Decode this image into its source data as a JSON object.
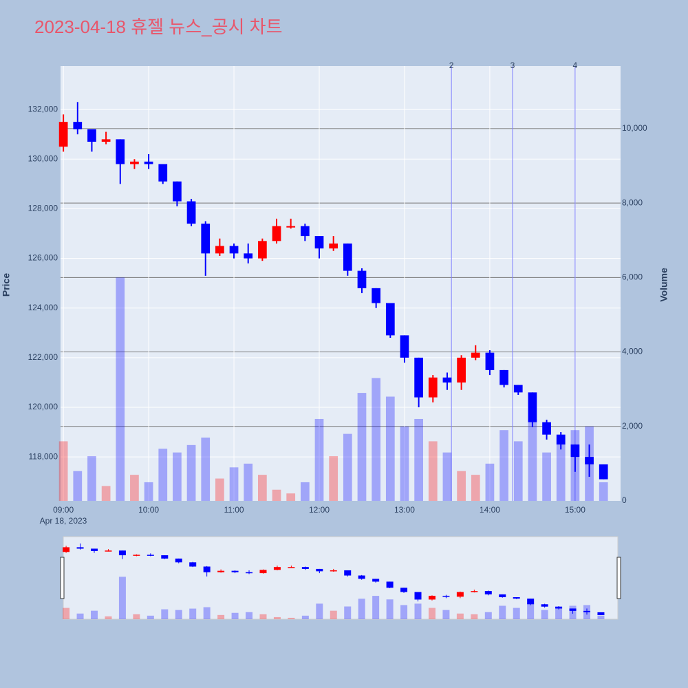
{
  "chart_data": {
    "type": "candlestick",
    "title": "2023-04-18 휴젤 뉴스_공시 차트",
    "y_title": "Price",
    "y2_title": "Volume",
    "x_date_label": "Apr 18, 2023",
    "x": [
      "09:00",
      "09:10",
      "09:20",
      "09:30",
      "09:40",
      "09:50",
      "10:00",
      "10:10",
      "10:20",
      "10:30",
      "10:40",
      "10:50",
      "11:00",
      "11:10",
      "11:20",
      "11:30",
      "11:40",
      "11:50",
      "12:00",
      "12:10",
      "12:20",
      "12:30",
      "12:40",
      "12:50",
      "13:00",
      "13:10",
      "13:20",
      "13:30",
      "13:40",
      "13:50",
      "14:00",
      "14:10",
      "14:20",
      "14:30",
      "14:40",
      "14:50",
      "15:00",
      "15:10",
      "15:20"
    ],
    "open": [
      130500,
      131500,
      131200,
      130700,
      130800,
      129800,
      129900,
      129800,
      129100,
      128300,
      127400,
      126200,
      126500,
      126200,
      126000,
      126700,
      127300,
      127300,
      126900,
      126400,
      126600,
      125500,
      124800,
      124200,
      122900,
      122000,
      120400,
      121200,
      121000,
      122000,
      122200,
      121500,
      120900,
      120600,
      119400,
      118900,
      118500,
      118000,
      117700
    ],
    "high": [
      131800,
      132300,
      131200,
      131100,
      130800,
      130000,
      130200,
      129800,
      129100,
      128400,
      127500,
      126800,
      126600,
      126600,
      126800,
      127600,
      127600,
      127400,
      126900,
      126900,
      126600,
      125600,
      124800,
      124200,
      122900,
      122000,
      121300,
      121400,
      122100,
      122500,
      122300,
      121500,
      120900,
      120600,
      119500,
      119000,
      118500,
      118500,
      117700
    ],
    "low": [
      130300,
      131000,
      130300,
      130600,
      129000,
      129600,
      129600,
      129000,
      128100,
      127300,
      125300,
      126100,
      126000,
      125800,
      125900,
      126600,
      127200,
      126700,
      126000,
      126300,
      125300,
      124600,
      124000,
      122800,
      121800,
      120000,
      120200,
      120700,
      120700,
      121900,
      121300,
      120800,
      120500,
      119200,
      118700,
      118300,
      117400,
      117200,
      117100
    ],
    "close": [
      131500,
      131200,
      130700,
      130800,
      129800,
      129900,
      129800,
      129100,
      128300,
      127400,
      126200,
      126500,
      126200,
      126000,
      126700,
      127300,
      127300,
      126900,
      126400,
      126600,
      125500,
      124800,
      124200,
      122900,
      122000,
      120400,
      121200,
      121000,
      122000,
      122200,
      121500,
      120900,
      120600,
      119400,
      118900,
      118500,
      118000,
      117700,
      117100
    ],
    "volume": [
      1600,
      800,
      1200,
      400,
      6000,
      700,
      500,
      1400,
      1300,
      1500,
      1700,
      600,
      900,
      1000,
      700,
      300,
      200,
      500,
      2200,
      1200,
      1800,
      2900,
      3300,
      2800,
      2000,
      2200,
      1600,
      1300,
      800,
      700,
      1000,
      1900,
      1600,
      2200,
      1300,
      1700,
      1900,
      2000,
      500
    ],
    "up_color": "#ff0000",
    "down_color": "#0000ff",
    "xlim": [
      "08:58",
      "15:32"
    ],
    "xticks": [
      "09:00",
      "10:00",
      "11:00",
      "12:00",
      "13:00",
      "14:00",
      "15:00"
    ],
    "ylim": [
      116230,
      133750
    ],
    "yticks": [
      {
        "value": 118000,
        "label": "118,000"
      },
      {
        "value": 120000,
        "label": "120,000"
      },
      {
        "value": 122000,
        "label": "122,000"
      },
      {
        "value": 124000,
        "label": "124,000"
      },
      {
        "value": 126000,
        "label": "126,000"
      },
      {
        "value": 128000,
        "label": "128,000"
      },
      {
        "value": 130000,
        "label": "130,000"
      },
      {
        "value": 132000,
        "label": "132,000"
      }
    ],
    "y2lim": [
      0,
      11680
    ],
    "y2ticks": [
      0,
      {
        "value": 2000,
        "label": "2,000"
      },
      {
        "value": 4000,
        "label": "4,000"
      },
      {
        "value": 6000,
        "label": "6,000"
      },
      {
        "value": 8000,
        "label": "8,000"
      },
      {
        "value": 10000,
        "label": "10,000"
      }
    ],
    "news": [
      {
        "x": "13:33",
        "label": "2"
      },
      {
        "x": "14:16",
        "label": "3"
      },
      {
        "x": "15:00",
        "label": "4"
      }
    ],
    "grid": true
  }
}
